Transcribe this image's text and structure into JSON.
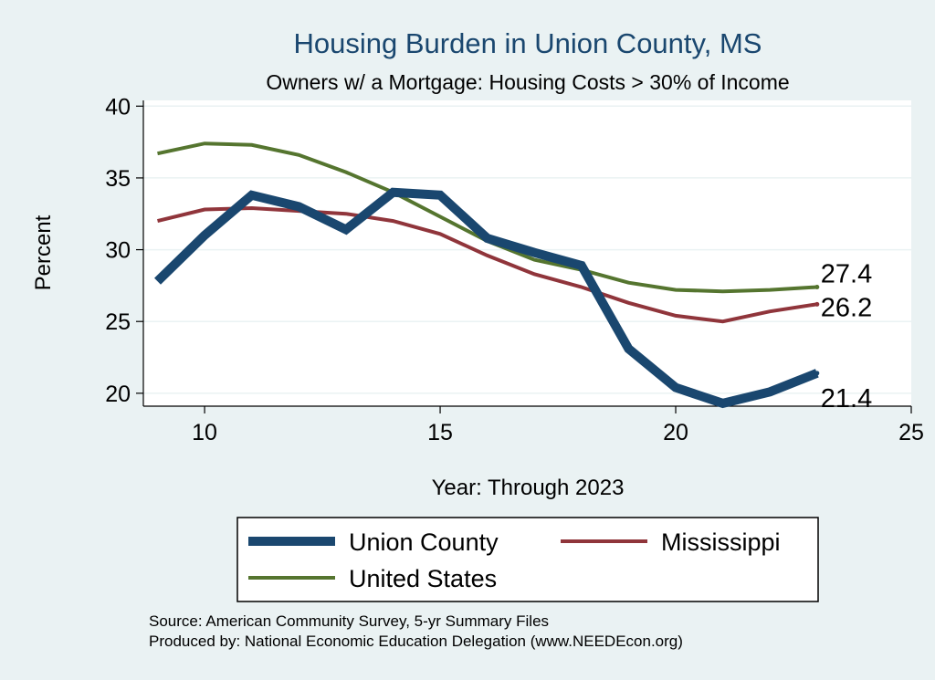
{
  "chart_data": {
    "type": "line",
    "title": "Housing Burden in Union County, MS",
    "subtitle": "Owners w/ a Mortgage: Housing Costs > 30% of Income",
    "xlabel": "Year: Through 2023",
    "ylabel": "Percent",
    "xlim": [
      8.7,
      25
    ],
    "ylim": [
      19.1,
      40.4
    ],
    "xticks": [
      10,
      15,
      20,
      25
    ],
    "yticks": [
      20,
      25,
      30,
      35,
      40
    ],
    "grid": true,
    "legend_position": "bottom",
    "series": [
      {
        "name": "Union County",
        "color": "#1a476f",
        "x": [
          9,
          10,
          11,
          12,
          13,
          14,
          15,
          16,
          17,
          18,
          19,
          20,
          21,
          22,
          23
        ],
        "y": [
          27.8,
          31.0,
          33.8,
          33.0,
          31.4,
          34.0,
          33.8,
          30.8,
          29.8,
          28.9,
          23.1,
          20.4,
          19.3,
          20.1,
          21.4
        ],
        "end_label": "21.4"
      },
      {
        "name": "Mississippi",
        "color": "#90353b",
        "x": [
          9,
          10,
          11,
          12,
          13,
          14,
          15,
          16,
          17,
          18,
          19,
          20,
          21,
          22,
          23
        ],
        "y": [
          32.0,
          32.8,
          32.9,
          32.7,
          32.5,
          32.0,
          31.1,
          29.6,
          28.3,
          27.4,
          26.3,
          25.4,
          25.0,
          25.7,
          26.2
        ],
        "end_label": "26.2"
      },
      {
        "name": "United States",
        "color": "#55752f",
        "x": [
          9,
          10,
          11,
          12,
          13,
          14,
          15,
          16,
          17,
          18,
          19,
          20,
          21,
          22,
          23
        ],
        "y": [
          36.7,
          37.4,
          37.3,
          36.6,
          35.4,
          34.0,
          32.3,
          30.6,
          29.3,
          28.6,
          27.7,
          27.2,
          27.1,
          27.2,
          27.4
        ],
        "end_label": "27.4"
      }
    ]
  },
  "notes": {
    "source": "Source: American Community Survey, 5-yr Summary Files",
    "produced_by": "Produced by: National Economic Education Delegation (www.NEEDEcon.org)"
  }
}
